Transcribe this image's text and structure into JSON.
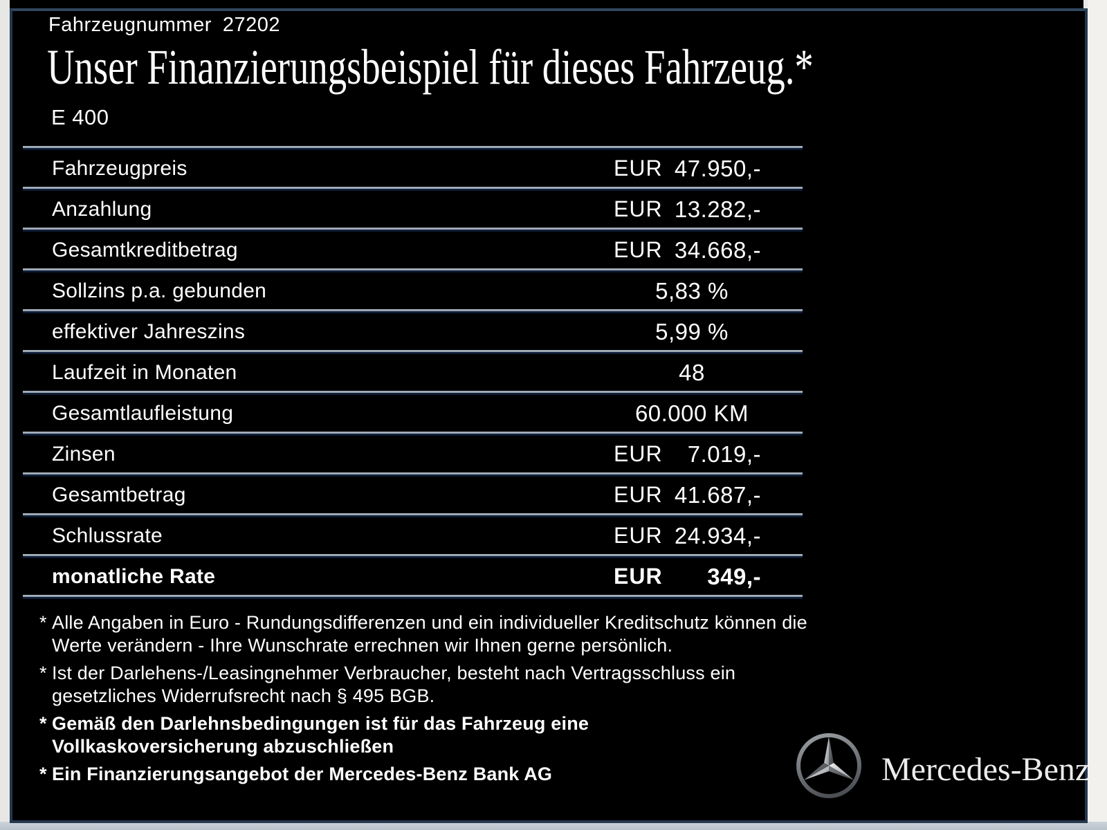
{
  "page": {
    "vehicle_number_label": "Fahrzeugnummer",
    "vehicle_number": "27202",
    "title": "Unser Finanzierungsbeispiel für dieses Fahrzeug.*",
    "model": "E 400"
  },
  "table": {
    "rows": [
      {
        "label": "Fahrzeugpreis",
        "currency": "EUR",
        "value": "47.950,-",
        "align": "right",
        "bold": false
      },
      {
        "label": "Anzahlung",
        "currency": "EUR",
        "value": "13.282,-",
        "align": "right",
        "bold": false
      },
      {
        "label": "Gesamtkreditbetrag",
        "currency": "EUR",
        "value": "34.668,-",
        "align": "right",
        "bold": false
      },
      {
        "label": "Sollzins p.a. gebunden",
        "value": "5,83 %",
        "align": "center",
        "bold": false
      },
      {
        "label": "effektiver Jahreszins",
        "value": "5,99 %",
        "align": "center",
        "bold": false
      },
      {
        "label": "Laufzeit in Monaten",
        "value": "48",
        "align": "center",
        "bold": false
      },
      {
        "label": "Gesamtlaufleistung",
        "value": "60.000 KM",
        "align": "center",
        "bold": false
      },
      {
        "label": "Zinsen",
        "currency": "EUR",
        "value": "7.019,-",
        "align": "right",
        "bold": false
      },
      {
        "label": "Gesamtbetrag",
        "currency": "EUR",
        "value": "41.687,-",
        "align": "right",
        "bold": false
      },
      {
        "label": "Schlussrate",
        "currency": "EUR",
        "value": "24.934,-",
        "align": "right",
        "bold": false
      },
      {
        "label": "monatliche Rate",
        "currency": "EUR",
        "value": "349,-",
        "align": "right",
        "bold": true
      }
    ]
  },
  "footnotes": [
    {
      "marker": "*",
      "bold": false,
      "lines": [
        "Alle Angaben in Euro - Rundungsdifferenzen und ein individueller Kreditschutz können die",
        "Werte verändern - Ihre Wunschrate errechnen wir Ihnen gerne persönlich."
      ]
    },
    {
      "marker": "*",
      "bold": false,
      "lines": [
        "Ist der Darlehens-/Leasingnehmer Verbraucher, besteht nach Vertragsschluss ein",
        "gesetzliches Widerrufsrecht nach § 495 BGB."
      ]
    },
    {
      "marker": "*",
      "bold": true,
      "lines": [
        "Gemäß den Darlehnsbedingungen ist für das Fahrzeug eine",
        "Vollkaskoversicherung abzuschließen"
      ]
    },
    {
      "marker": "*",
      "bold": true,
      "lines": [
        "Ein Finanzierungsangebot der Mercedes-Benz Bank AG"
      ]
    }
  ],
  "brand": {
    "logo": "mercedes-star-icon",
    "wordmark": "Mercedes-Benz"
  },
  "colors": {
    "background": "#000000",
    "text": "#ffffff",
    "frame_border": "#24384f",
    "separator_light": "#a9b3be",
    "separator_dark": "#0a1730",
    "page_background": "#e7e8e6"
  }
}
